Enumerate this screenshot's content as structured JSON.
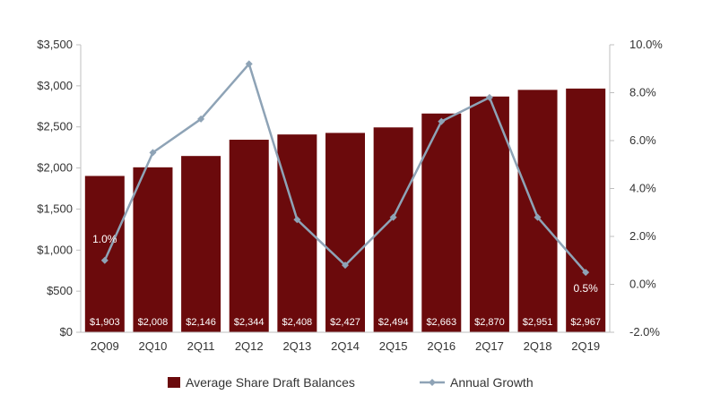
{
  "chart_data": {
    "type": "bar",
    "categories": [
      "2Q09",
      "2Q10",
      "2Q11",
      "2Q12",
      "2Q13",
      "2Q14",
      "2Q15",
      "2Q16",
      "2Q17",
      "2Q18",
      "2Q19"
    ],
    "series": [
      {
        "name": "Average Share Draft Balances",
        "type": "bar",
        "axis": "left",
        "color": "#6b0a0c",
        "values": [
          1903,
          2008,
          2146,
          2344,
          2408,
          2427,
          2494,
          2663,
          2870,
          2951,
          2967
        ],
        "data_labels": [
          "$1,903",
          "$2,008",
          "$2,146",
          "$2,344",
          "$2,408",
          "$2,427",
          "$2,494",
          "$2,663",
          "$2,870",
          "$2,951",
          "$2,967"
        ]
      },
      {
        "name": "Annual Growth",
        "type": "line",
        "axis": "right",
        "color": "#8ea3b6",
        "marker": "diamond",
        "values": [
          1.0,
          5.5,
          6.9,
          9.2,
          2.7,
          0.8,
          2.8,
          6.8,
          7.8,
          2.8,
          0.5
        ]
      }
    ],
    "annotations": [
      {
        "category": "2Q09",
        "text": "1.0%"
      },
      {
        "category": "2Q19",
        "text": "0.5%"
      }
    ],
    "y_left": {
      "ylim": [
        0,
        3500
      ],
      "ticks": [
        0,
        500,
        1000,
        1500,
        2000,
        2500,
        3000,
        3500
      ],
      "tick_labels": [
        "$0",
        "$500",
        "$1,000",
        "$1,500",
        "$2,000",
        "$2,500",
        "$3,000",
        "$3,500"
      ]
    },
    "y_right": {
      "ylim": [
        -2.0,
        10.0
      ],
      "ticks": [
        -2,
        0,
        2,
        4,
        6,
        8,
        10
      ],
      "tick_labels": [
        "-2.0%",
        "0.0%",
        "2.0%",
        "4.0%",
        "6.0%",
        "8.0%",
        "10.0%"
      ]
    },
    "title": "",
    "xlabel": "",
    "ylabel": "",
    "grid": false,
    "legend_position": "bottom"
  }
}
